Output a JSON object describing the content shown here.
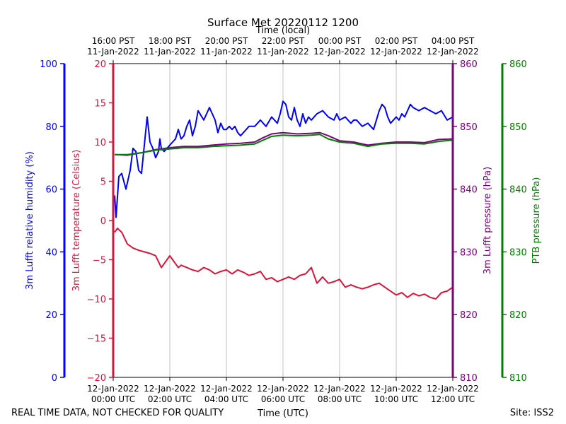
{
  "chart_data": {
    "type": "line",
    "title": "Surface Met 20220112 1200",
    "xlabel": "Time (UTC)",
    "x2label": "Time (local)",
    "xlim": [
      0,
      12
    ],
    "x_ticks": [
      {
        "value": 0,
        "date": "12-Jan-2022",
        "time": "00:00 UTC"
      },
      {
        "value": 2,
        "date": "12-Jan-2022",
        "time": "02:00 UTC"
      },
      {
        "value": 4,
        "date": "12-Jan-2022",
        "time": "04:00 UTC"
      },
      {
        "value": 6,
        "date": "12-Jan-2022",
        "time": "06:00 UTC"
      },
      {
        "value": 8,
        "date": "12-Jan-2022",
        "time": "08:00 UTC"
      },
      {
        "value": 10,
        "date": "12-Jan-2022",
        "time": "10:00 UTC"
      },
      {
        "value": 12,
        "date": "12-Jan-2022",
        "time": "12:00 UTC"
      }
    ],
    "x2_ticks": [
      {
        "value": 0,
        "time": "16:00 PST",
        "date": "11-Jan-2022"
      },
      {
        "value": 2,
        "time": "18:00 PST",
        "date": "11-Jan-2022"
      },
      {
        "value": 4,
        "time": "20:00 PST",
        "date": "11-Jan-2022"
      },
      {
        "value": 6,
        "time": "22:00 PST",
        "date": "11-Jan-2022"
      },
      {
        "value": 8,
        "time": "00:00 PST",
        "date": "12-Jan-2022"
      },
      {
        "value": 10,
        "time": "02:00 PST",
        "date": "12-Jan-2022"
      },
      {
        "value": 12,
        "time": "04:00 PST",
        "date": "12-Jan-2022"
      }
    ],
    "grid": "vertical",
    "axes": [
      {
        "key": "rh",
        "label": "3m Lufft relative humidity (%)",
        "color": "#0000ff",
        "side": "left-outer",
        "ylim": [
          0,
          100
        ],
        "ticks": [
          0,
          20,
          40,
          60,
          80,
          100
        ]
      },
      {
        "key": "temp",
        "label": "3m Lufft temperature (Celsius)",
        "color": "#dc143c",
        "side": "left-inner",
        "ylim": [
          -20,
          20
        ],
        "ticks": [
          -20,
          -15,
          -10,
          -5,
          0,
          5,
          10,
          15,
          20
        ]
      },
      {
        "key": "press",
        "label": "3m Lufft pressure (hPa)",
        "color": "#800080",
        "side": "right-inner",
        "ylim": [
          810,
          860
        ],
        "ticks": [
          810,
          820,
          830,
          840,
          850,
          860
        ]
      },
      {
        "key": "ptb",
        "label": "PTB pressure (hPa)",
        "color": "#008000",
        "side": "right-outer",
        "ylim": [
          810,
          860
        ],
        "ticks": [
          810,
          820,
          830,
          840,
          850,
          860
        ]
      }
    ],
    "series": [
      {
        "axis": "rh",
        "color": "#0000ff",
        "x": [
          0.05,
          0.1,
          0.2,
          0.3,
          0.45,
          0.6,
          0.7,
          0.8,
          0.9,
          1.0,
          1.1,
          1.2,
          1.3,
          1.4,
          1.5,
          1.6,
          1.65,
          1.7,
          1.8,
          1.9,
          2.0,
          2.1,
          2.2,
          2.3,
          2.4,
          2.5,
          2.6,
          2.7,
          2.8,
          2.9,
          3.0,
          3.2,
          3.4,
          3.5,
          3.6,
          3.7,
          3.8,
          3.9,
          4.0,
          4.1,
          4.2,
          4.3,
          4.4,
          4.5,
          4.6,
          4.8,
          5.0,
          5.2,
          5.4,
          5.6,
          5.8,
          5.9,
          6.0,
          6.1,
          6.2,
          6.3,
          6.4,
          6.5,
          6.6,
          6.7,
          6.8,
          6.9,
          7.0,
          7.2,
          7.4,
          7.6,
          7.8,
          7.9,
          8.0,
          8.2,
          8.4,
          8.5,
          8.6,
          8.8,
          9.0,
          9.2,
          9.3,
          9.4,
          9.5,
          9.6,
          9.7,
          9.8,
          10.0,
          10.1,
          10.2,
          10.3,
          10.4,
          10.5,
          10.6,
          10.8,
          11.0,
          11.2,
          11.4,
          11.6,
          11.8,
          12.0
        ],
        "y": [
          58,
          51,
          64,
          65,
          60,
          66,
          73,
          72,
          66,
          65,
          74,
          83,
          75,
          73,
          70,
          72,
          76,
          73,
          72,
          73,
          74,
          75,
          76,
          79,
          76,
          77,
          80,
          82,
          77,
          80,
          85,
          82,
          86,
          84,
          82,
          78,
          81,
          79,
          79,
          80,
          79,
          80,
          78,
          77,
          78,
          80,
          80,
          82,
          80,
          83,
          81,
          84,
          88,
          87,
          83,
          82,
          86,
          82,
          80,
          84,
          81,
          83,
          82,
          84,
          85,
          83,
          82,
          84,
          82,
          83,
          81,
          82,
          82,
          80,
          81,
          79,
          82,
          85,
          87,
          86,
          83,
          81,
          83,
          82,
          84,
          83,
          85,
          87,
          86,
          85,
          86,
          85,
          84,
          85,
          82,
          83
        ]
      },
      {
        "axis": "temp",
        "color": "#dc143c",
        "x": [
          0.05,
          0.15,
          0.3,
          0.5,
          0.7,
          0.9,
          1.1,
          1.3,
          1.5,
          1.7,
          1.8,
          1.9,
          2.0,
          2.1,
          2.2,
          2.3,
          2.4,
          2.6,
          2.8,
          3.0,
          3.2,
          3.4,
          3.6,
          3.8,
          4.0,
          4.2,
          4.4,
          4.6,
          4.8,
          5.0,
          5.2,
          5.4,
          5.6,
          5.8,
          6.0,
          6.2,
          6.4,
          6.6,
          6.8,
          7.0,
          7.2,
          7.4,
          7.6,
          7.8,
          8.0,
          8.2,
          8.4,
          8.6,
          8.8,
          9.0,
          9.2,
          9.4,
          9.6,
          9.8,
          10.0,
          10.2,
          10.4,
          10.6,
          10.8,
          11.0,
          11.2,
          11.4,
          11.6,
          11.8,
          12.0
        ],
        "y": [
          -1.5,
          -1.0,
          -1.5,
          -3,
          -3.5,
          -3.8,
          -4,
          -4.2,
          -4.5,
          -6,
          -5.5,
          -5,
          -4.5,
          -5,
          -5.5,
          -6,
          -5.7,
          -6,
          -6.3,
          -6.5,
          -6,
          -6.3,
          -6.8,
          -6.5,
          -6.3,
          -6.8,
          -6.3,
          -6.6,
          -7,
          -6.8,
          -6.5,
          -7.5,
          -7.3,
          -7.8,
          -7.5,
          -7.2,
          -7.5,
          -7,
          -6.8,
          -6,
          -8,
          -7.2,
          -8,
          -7.8,
          -7.5,
          -8.5,
          -8.2,
          -8.5,
          -8.7,
          -8.5,
          -8.2,
          -8,
          -8.5,
          -9,
          -9.5,
          -9.2,
          -9.8,
          -9.3,
          -9.6,
          -9.4,
          -9.8,
          -10,
          -9.2,
          -9,
          -8.5
        ]
      },
      {
        "axis": "press",
        "color": "#800080",
        "x": [
          0.05,
          0.5,
          1.0,
          1.5,
          2.0,
          2.5,
          3.0,
          3.5,
          4.0,
          4.5,
          5.0,
          5.3,
          5.6,
          6.0,
          6.5,
          7.0,
          7.3,
          7.6,
          8.0,
          8.5,
          9.0,
          9.5,
          10.0,
          10.5,
          11.0,
          11.5,
          12.0
        ],
        "y": [
          845.5,
          845.4,
          845.8,
          846.3,
          846.6,
          846.8,
          846.8,
          847.0,
          847.2,
          847.3,
          847.5,
          848.2,
          848.8,
          849.0,
          848.8,
          848.9,
          849.0,
          848.5,
          847.7,
          847.5,
          847.0,
          847.3,
          847.5,
          847.5,
          847.4,
          847.9,
          848.0
        ]
      },
      {
        "axis": "ptb",
        "color": "#008000",
        "x": [
          0.05,
          0.5,
          1.0,
          1.5,
          2.0,
          2.5,
          3.0,
          3.5,
          4.0,
          4.5,
          5.0,
          5.3,
          5.6,
          6.0,
          6.5,
          7.0,
          7.3,
          7.6,
          8.0,
          8.5,
          9.0,
          9.5,
          10.0,
          10.5,
          11.0,
          11.5,
          12.0
        ],
        "y": [
          845.5,
          845.5,
          845.8,
          846.2,
          846.4,
          846.6,
          846.6,
          846.8,
          846.9,
          847.0,
          847.2,
          847.8,
          848.4,
          848.6,
          848.5,
          848.6,
          848.7,
          848.0,
          847.5,
          847.3,
          846.8,
          847.2,
          847.3,
          847.3,
          847.2,
          847.6,
          847.8
        ]
      }
    ],
    "annotations": {
      "disclaimer": "REAL TIME DATA, NOT CHECKED FOR QUALITY",
      "site": "Site: ISS2"
    }
  }
}
